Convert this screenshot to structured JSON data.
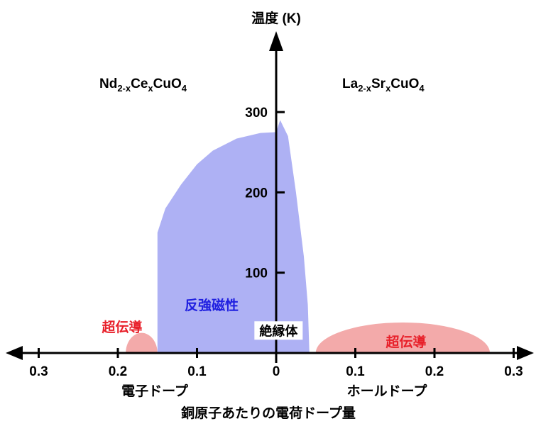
{
  "chart_data": {
    "type": "area",
    "title": "",
    "xlabel": "銅原子あたりの電荷ドープ量",
    "ylabel": "温度 (K)",
    "x_side_labels": {
      "left": "電子ドープ",
      "right": "ホールドープ"
    },
    "xlim": [
      -0.34,
      0.34
    ],
    "ylim": [
      0,
      390
    ],
    "x_ticks": [
      -0.3,
      -0.2,
      -0.1,
      0,
      0.1,
      0.2,
      0.3
    ],
    "x_tick_labels": [
      "0.3",
      "0.2",
      "0.1",
      "0",
      "0.1",
      "0.2",
      "0.3"
    ],
    "y_ticks": [
      100,
      200,
      300
    ],
    "y_tick_labels": [
      "100",
      "200",
      "300"
    ],
    "compounds": {
      "left": {
        "base1": "Nd",
        "sub1": "2-x",
        "base2": "Ce",
        "sub2": "x",
        "base3": "CuO",
        "sub3": "4"
      },
      "right": {
        "base1": "La",
        "sub1": "2-x",
        "base2": "Sr",
        "sub2": "x",
        "base3": "CuO",
        "sub3": "4"
      }
    },
    "regions": [
      {
        "name": "反強磁性",
        "color": "#aeb1f4",
        "label_color": "#2020e0",
        "boundary": [
          [
            -0.15,
            0
          ],
          [
            -0.15,
            150
          ],
          [
            -0.14,
            180
          ],
          [
            -0.12,
            210
          ],
          [
            -0.1,
            235
          ],
          [
            -0.08,
            252
          ],
          [
            -0.05,
            267
          ],
          [
            -0.02,
            274
          ],
          [
            0,
            275
          ],
          [
            0.005,
            290
          ],
          [
            0.015,
            270
          ],
          [
            0.025,
            200
          ],
          [
            0.035,
            120
          ],
          [
            0.04,
            60
          ],
          [
            0.042,
            0
          ]
        ]
      },
      {
        "name": "超伝導",
        "color": "#f3aaaa",
        "label_color": "#e8202a",
        "side": "electron",
        "x_range": [
          -0.19,
          -0.15
        ],
        "tc_max": 25
      },
      {
        "name": "超伝導",
        "color": "#f3aaaa",
        "label_color": "#e8202a",
        "side": "hole",
        "x_range": [
          0.05,
          0.27
        ],
        "tc_max": 38
      }
    ],
    "annotations": [
      {
        "text": "絶縁体",
        "x": 0.003,
        "y": 28
      }
    ],
    "grid": false,
    "legend": "none"
  }
}
